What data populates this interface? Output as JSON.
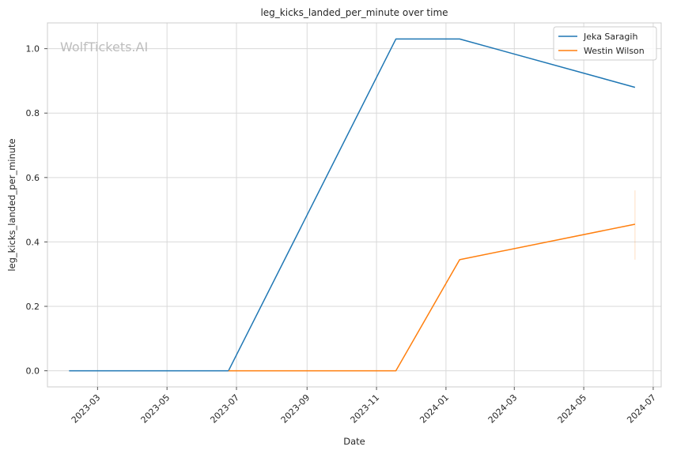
{
  "chart_data": {
    "type": "line",
    "title": "leg_kicks_landed_per_minute over time",
    "xlabel": "Date",
    "ylabel": "leg_kicks_landed_per_minute",
    "watermark": "WolfTickets.AI",
    "x_ticks": [
      "2023-03",
      "2023-05",
      "2023-07",
      "2023-09",
      "2023-11",
      "2024-01",
      "2024-03",
      "2024-05",
      "2024-07"
    ],
    "xlim": [
      "2023-01-16",
      "2024-07-08"
    ],
    "y_ticks": [
      0.0,
      0.2,
      0.4,
      0.6,
      0.8,
      1.0
    ],
    "y_tick_labels": [
      "0.0",
      "0.2",
      "0.4",
      "0.6",
      "0.8",
      "1.0"
    ],
    "ylim": [
      -0.05,
      1.08
    ],
    "grid": true,
    "legend_position": "top-right",
    "series": [
      {
        "name": "Jeka Saragih",
        "color": "#1f77b4",
        "x": [
          "2023-02-04",
          "2023-06-24",
          "2023-11-18",
          "2024-01-13",
          "2024-06-15"
        ],
        "y": [
          0.0,
          0.0,
          1.03,
          1.03,
          0.88
        ]
      },
      {
        "name": "Westin Wilson",
        "color": "#ff7f0e",
        "x": [
          "2023-06-24",
          "2023-11-18",
          "2024-01-13",
          "2024-06-15"
        ],
        "y": [
          0.0,
          0.0,
          0.345,
          0.455
        ],
        "error_band": {
          "x": "2024-06-15",
          "low": 0.345,
          "high": 0.56
        }
      }
    ]
  }
}
